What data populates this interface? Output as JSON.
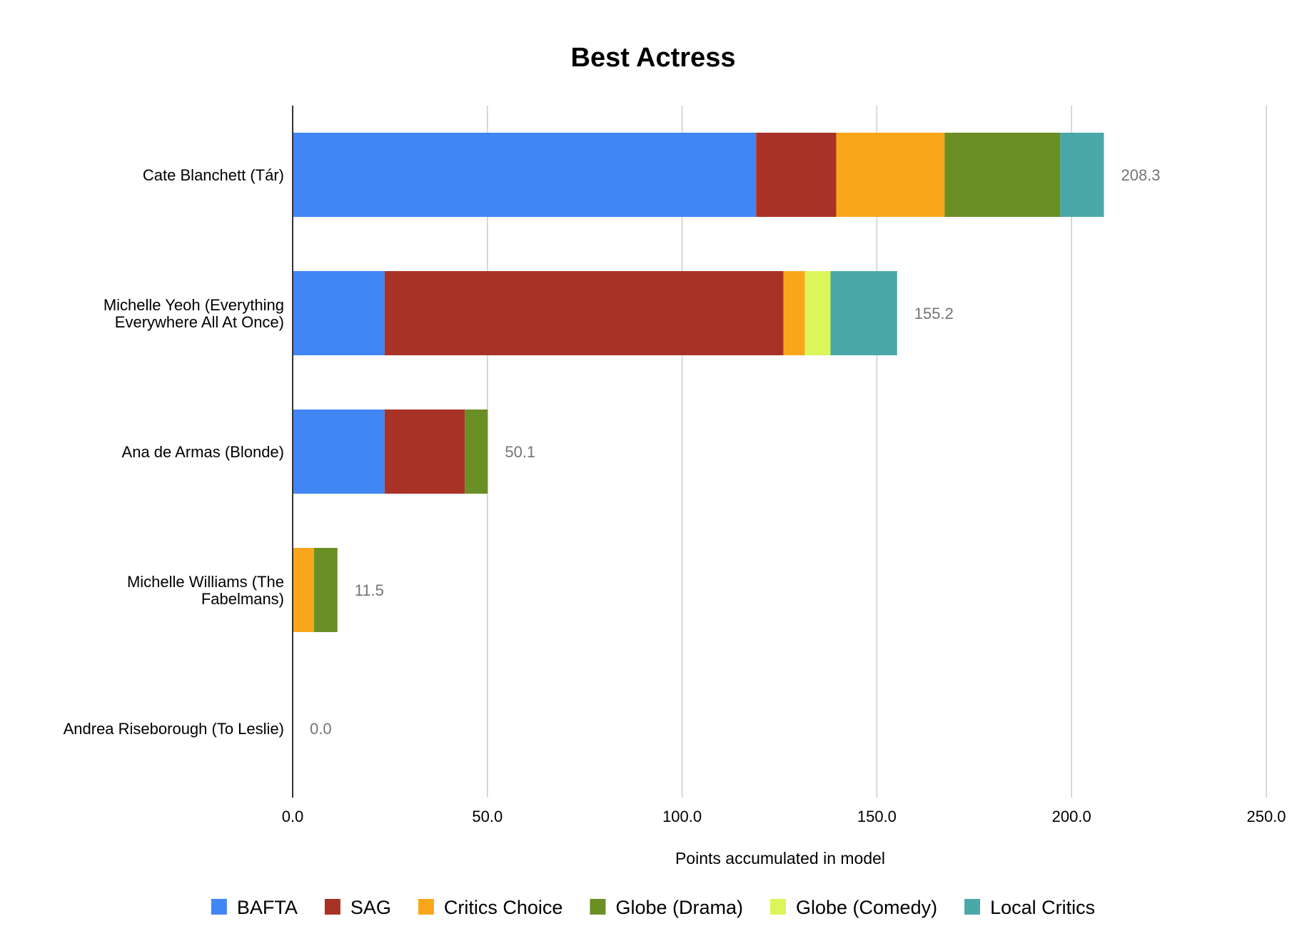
{
  "chart_data": {
    "type": "bar",
    "orientation": "horizontal",
    "stacked": true,
    "title": "Best Actress",
    "xlabel": "Points accumulated in model",
    "ylabel": "",
    "xlim": [
      0,
      250
    ],
    "xticks": [
      0,
      50,
      100,
      150,
      200,
      250
    ],
    "xtick_labels": [
      "0.0",
      "50.0",
      "100.0",
      "150.0",
      "200.0",
      "250.0"
    ],
    "grid": true,
    "legend_position": "bottom",
    "categories": [
      [
        "Cate Blanchett (Tár)"
      ],
      [
        "Michelle Yeoh (Everything",
        "Everywhere All At Once)"
      ],
      [
        "Ana de Armas (Blonde)"
      ],
      [
        "Michelle Williams (The",
        "Fabelmans)"
      ],
      [
        "Andrea Riseborough (To Leslie)"
      ]
    ],
    "totals": [
      "208.3",
      "155.2",
      "50.1",
      "11.5",
      "0.0"
    ],
    "series": [
      {
        "name": "BAFTA",
        "color": "#4285F4",
        "values": [
          119.0,
          23.6,
          23.6,
          0.0,
          0.0
        ]
      },
      {
        "name": "SAG",
        "color": "#A93226",
        "values": [
          20.6,
          102.4,
          20.6,
          0.0,
          0.0
        ]
      },
      {
        "name": "Critics Choice",
        "color": "#FAA61A",
        "values": [
          27.8,
          5.5,
          0.0,
          5.5,
          0.0
        ]
      },
      {
        "name": "Globe (Drama)",
        "color": "#6A8F25",
        "values": [
          29.7,
          0.0,
          5.9,
          6.0,
          0.0
        ]
      },
      {
        "name": "Globe (Comedy)",
        "color": "#DCF55A",
        "values": [
          0.0,
          6.6,
          0.0,
          0.0,
          0.0
        ]
      },
      {
        "name": "Local Critics",
        "color": "#4AA8A8",
        "values": [
          11.2,
          17.1,
          0.0,
          0.0,
          0.0
        ]
      }
    ]
  }
}
